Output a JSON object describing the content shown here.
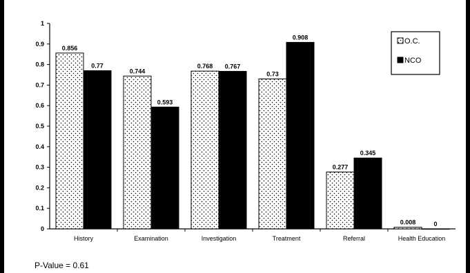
{
  "chart_data": {
    "type": "bar",
    "categories": [
      "History",
      "Examination",
      "Investigation",
      "Treatment",
      "Referral",
      "Health Education"
    ],
    "series": [
      {
        "name": "O.C.",
        "values": [
          0.856,
          0.744,
          0.768,
          0.73,
          0.277,
          0.008
        ],
        "value_labels": [
          "0.856",
          "0.744",
          "0.768",
          "0.73",
          "0.277",
          "0.008"
        ],
        "pattern": "dotted",
        "color": "#ffffff"
      },
      {
        "name": "NCO",
        "values": [
          0.77,
          0.593,
          0.767,
          0.908,
          0.345,
          0
        ],
        "value_labels": [
          "0.77",
          "0.593",
          "0.767",
          "0.908",
          "0.345",
          "0"
        ],
        "pattern": "solid",
        "color": "#000000"
      }
    ],
    "ylim": [
      0,
      1
    ],
    "yticks": [
      "0",
      "0.1",
      "0.2",
      "0.3",
      "0.4",
      "0.5",
      "0.6",
      "0.7",
      "0.8",
      "0.9",
      "1"
    ],
    "grid": false,
    "legend_position": "top-right",
    "annotation": "P-Value = 0.61"
  }
}
